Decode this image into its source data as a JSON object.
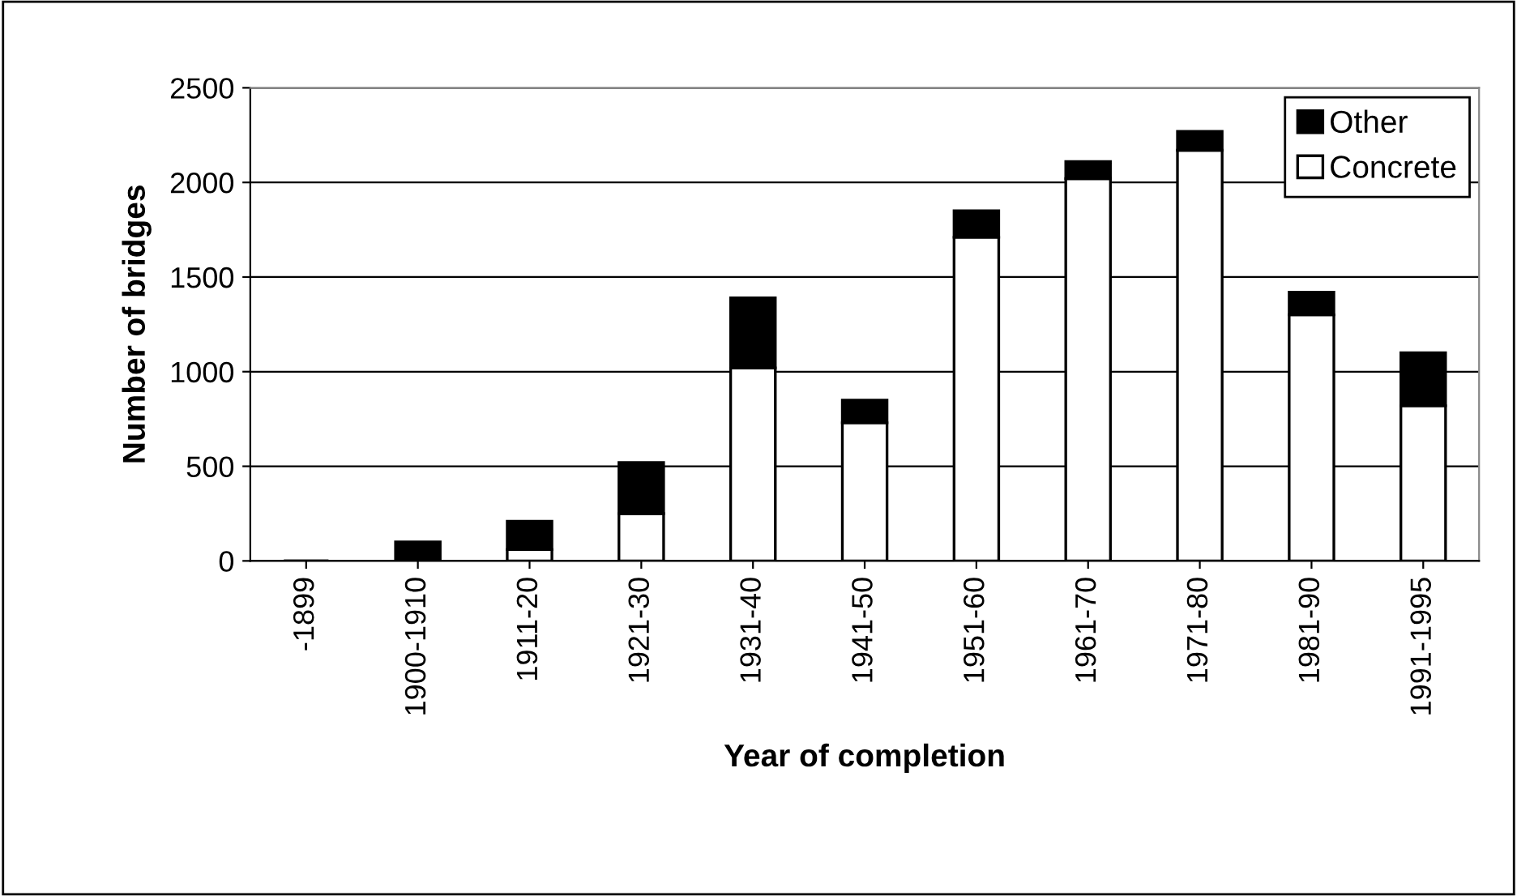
{
  "chart_data": {
    "type": "bar",
    "stacked": true,
    "xlabel": "Year of completion",
    "ylabel": "Number of bridges",
    "categories": [
      "-1899",
      "1900-1910",
      "1911-20",
      "1921-30",
      "1931-40",
      "1941-50",
      "1951-60",
      "1961-70",
      "1971-80",
      "1981-90",
      "1991-1995"
    ],
    "series": [
      {
        "name": "Concrete",
        "color": "#ffffff",
        "values": [
          0,
          0,
          60,
          250,
          1020,
          730,
          1710,
          2020,
          2170,
          1300,
          820
        ]
      },
      {
        "name": "Other",
        "color": "#000000",
        "values": [
          0,
          100,
          150,
          270,
          370,
          120,
          140,
          90,
          100,
          120,
          280
        ]
      }
    ],
    "ylim": [
      0,
      2500
    ],
    "yticks": [
      0,
      500,
      1000,
      1500,
      2000,
      2500
    ],
    "grid": "y",
    "legend": "top right"
  }
}
